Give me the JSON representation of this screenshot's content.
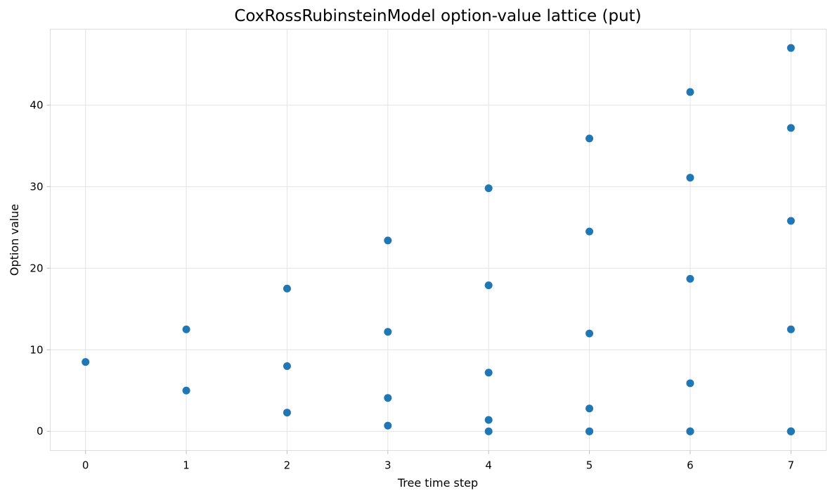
{
  "chart_data": {
    "type": "scatter",
    "title": "CoxRossRubinsteinModel option-value lattice (put)",
    "xlabel": "Tree time step",
    "ylabel": "Option value",
    "xlim": [
      -0.35,
      7.35
    ],
    "ylim": [
      -2.35,
      49.3
    ],
    "xticks": [
      0,
      1,
      2,
      3,
      4,
      5,
      6,
      7
    ],
    "yticks": [
      0,
      10,
      20,
      30,
      40
    ],
    "grid": true,
    "legend": "none",
    "series": [
      {
        "color": "#1f77b4",
        "points": [
          {
            "x": 0,
            "y": 8.5
          },
          {
            "x": 1,
            "y": 12.5
          },
          {
            "x": 1,
            "y": 5.0
          },
          {
            "x": 2,
            "y": 17.5
          },
          {
            "x": 2,
            "y": 8.0
          },
          {
            "x": 2,
            "y": 2.3
          },
          {
            "x": 3,
            "y": 23.4
          },
          {
            "x": 3,
            "y": 12.2
          },
          {
            "x": 3,
            "y": 4.1
          },
          {
            "x": 3,
            "y": 0.7
          },
          {
            "x": 4,
            "y": 29.8
          },
          {
            "x": 4,
            "y": 17.9
          },
          {
            "x": 4,
            "y": 7.2
          },
          {
            "x": 4,
            "y": 1.4
          },
          {
            "x": 4,
            "y": 0.0
          },
          {
            "x": 5,
            "y": 35.9
          },
          {
            "x": 5,
            "y": 24.5
          },
          {
            "x": 5,
            "y": 12.0
          },
          {
            "x": 5,
            "y": 2.8
          },
          {
            "x": 5,
            "y": 0.0
          },
          {
            "x": 5,
            "y": 0.0
          },
          {
            "x": 6,
            "y": 41.6
          },
          {
            "x": 6,
            "y": 31.1
          },
          {
            "x": 6,
            "y": 18.7
          },
          {
            "x": 6,
            "y": 5.9
          },
          {
            "x": 6,
            "y": 0.0
          },
          {
            "x": 6,
            "y": 0.0
          },
          {
            "x": 6,
            "y": 0.0
          },
          {
            "x": 7,
            "y": 47.0
          },
          {
            "x": 7,
            "y": 37.2
          },
          {
            "x": 7,
            "y": 25.8
          },
          {
            "x": 7,
            "y": 12.5
          },
          {
            "x": 7,
            "y": 0.0
          },
          {
            "x": 7,
            "y": 0.0
          },
          {
            "x": 7,
            "y": 0.0
          },
          {
            "x": 7,
            "y": 0.0
          }
        ]
      }
    ]
  }
}
